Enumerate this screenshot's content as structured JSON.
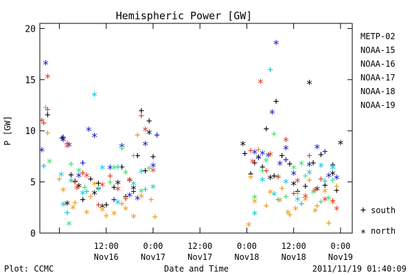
{
  "chart_data": {
    "type": "scatter",
    "title": "Hemispheric Power [GW]",
    "xlabel": "Date and Time",
    "ylabel": "P [GW]",
    "ylim": [
      0,
      20.5
    ],
    "xlim": [
      "2011-11-15 19:00",
      "2011-11-19 03:00"
    ],
    "y_ticks": [
      0,
      5,
      10,
      15,
      20
    ],
    "x_ticks": [
      {
        "time": "2011-11-16 00:00",
        "label": "",
        "sub": ""
      },
      {
        "time": "2011-11-16 12:00",
        "label": "12:00",
        "sub": "Nov16"
      },
      {
        "time": "2011-11-17 00:00",
        "label": "0:00",
        "sub": "Nov17"
      },
      {
        "time": "2011-11-17 12:00",
        "label": "12:00",
        "sub": "Nov17"
      },
      {
        "time": "2011-11-18 00:00",
        "label": "0:00",
        "sub": "Nov18"
      },
      {
        "time": "2011-11-18 12:00",
        "label": "12:00",
        "sub": "Nov18"
      },
      {
        "time": "2011-11-19 00:00",
        "label": "0:00",
        "sub": "Nov19"
      }
    ],
    "grid": false,
    "legend_position": "right",
    "markers": {
      "south": "+",
      "north": "*"
    },
    "marker_legend": [
      {
        "symbol": "+",
        "label": "south"
      },
      {
        "symbol": "*",
        "label": "north"
      }
    ],
    "series": [
      {
        "name": "METP-02",
        "color": "#000000",
        "south": [
          [
            "2011-11-15 21:00",
            11.6
          ],
          [
            "2011-11-16 00:40",
            9.3
          ],
          [
            "2011-11-16 03:00",
            5.7
          ],
          [
            "2011-11-16 04:00",
            5.1
          ],
          [
            "2011-11-16 06:00",
            3.3
          ],
          [
            "2011-11-16 08:00",
            5.3
          ],
          [
            "2011-11-16 10:00",
            4.9
          ],
          [
            "2011-11-16 12:00",
            2.8
          ],
          [
            "2011-11-16 14:00",
            4.5
          ],
          [
            "2011-11-16 16:00",
            6.5
          ],
          [
            "2011-11-16 17:00",
            3.6
          ],
          [
            "2011-11-16 18:00",
            5.2
          ],
          [
            "2011-11-16 20:00",
            7.6
          ],
          [
            "2011-11-16 21:00",
            12.0
          ],
          [
            "2011-11-16 22:00",
            6.1
          ],
          [
            "2011-11-16 23:00",
            11.0
          ],
          [
            "2011-11-17 00:00",
            7.5
          ],
          [
            "2011-11-17 23:30",
            7.8
          ],
          [
            "2011-11-18 01:00",
            5.8
          ],
          [
            "2011-11-18 02:00",
            6.9
          ],
          [
            "2011-11-18 04:00",
            6.5
          ],
          [
            "2011-11-18 05:00",
            10.2
          ],
          [
            "2011-11-18 07:00",
            5.6
          ],
          [
            "2011-11-18 07:30",
            12.9
          ],
          [
            "2011-11-18 09:00",
            7.6
          ],
          [
            "2011-11-18 11:00",
            6.8
          ],
          [
            "2011-11-18 13:00",
            4.1
          ],
          [
            "2011-11-18 15:00",
            4.6
          ],
          [
            "2011-11-18 17:00",
            6.9
          ],
          [
            "2011-11-18 19:00",
            7.7
          ],
          [
            "2011-11-18 20:00",
            4.7
          ],
          [
            "2011-11-18 22:00",
            6.7
          ],
          [
            "2011-11-18 23:00",
            4.2
          ]
        ],
        "north": [
          [
            "2011-11-16 02:00",
            2.9
          ],
          [
            "2011-11-16 05:00",
            4.6
          ],
          [
            "2011-11-16 09:00",
            3.9
          ],
          [
            "2011-11-16 11:00",
            2.6
          ],
          [
            "2011-11-16 15:00",
            4.9
          ],
          [
            "2011-11-16 19:00",
            4.4
          ],
          [
            "2011-11-16 23:00",
            9.8
          ],
          [
            "2011-11-17 23:00",
            8.7
          ],
          [
            "2011-11-18 03:00",
            7.4
          ],
          [
            "2011-11-18 06:00",
            5.4
          ],
          [
            "2011-11-18 12:00",
            4.8
          ],
          [
            "2011-11-18 16:00",
            14.7
          ],
          [
            "2011-11-18 18:00",
            4.3
          ],
          [
            "2011-11-18 22:00",
            5.8
          ],
          [
            "2011-11-19 00:00",
            8.8
          ]
        ]
      },
      {
        "name": "NOAA-15",
        "color": "#1010c8",
        "south": [
          [
            "2011-11-16 01:00",
            9.4
          ],
          [
            "2011-11-16 06:00",
            6.9
          ],
          [
            "2011-11-16 10:00",
            4.4
          ],
          [
            "2011-11-16 14:00",
            3.3
          ],
          [
            "2011-11-16 19:00",
            4.1
          ],
          [
            "2011-11-17 01:00",
            9.6
          ],
          [
            "2011-11-18 03:00",
            7.4
          ],
          [
            "2011-11-18 10:00",
            7.2
          ],
          [
            "2011-11-18 20:00",
            8.0
          ]
        ],
        "north": [
          [
            "2011-11-15 19:30",
            8.1
          ],
          [
            "2011-11-15 20:30",
            16.6
          ],
          [
            "2011-11-16 01:00",
            9.1
          ],
          [
            "2011-11-16 02:30",
            8.6
          ],
          [
            "2011-11-16 05:00",
            5.6
          ],
          [
            "2011-11-16 07:30",
            10.1
          ],
          [
            "2011-11-16 09:00",
            9.5
          ],
          [
            "2011-11-16 13:00",
            6.4
          ],
          [
            "2011-11-16 16:00",
            8.5
          ],
          [
            "2011-11-16 18:00",
            3.7
          ],
          [
            "2011-11-16 20:00",
            3.4
          ],
          [
            "2011-11-16 22:00",
            8.7
          ],
          [
            "2011-11-17 00:00",
            6.6
          ],
          [
            "2011-11-18 02:00",
            7.9
          ],
          [
            "2011-11-18 04:00",
            7.8
          ],
          [
            "2011-11-18 05:30",
            7.6
          ],
          [
            "2011-11-18 06:30",
            11.8
          ],
          [
            "2011-11-18 07:30",
            18.6
          ],
          [
            "2011-11-18 08:30",
            6.8
          ],
          [
            "2011-11-18 10:00",
            8.3
          ],
          [
            "2011-11-18 12:00",
            5.8
          ],
          [
            "2011-11-18 16:00",
            6.7
          ],
          [
            "2011-11-18 18:00",
            8.4
          ],
          [
            "2011-11-18 21:00",
            5.6
          ],
          [
            "2011-11-18 23:00",
            5.4
          ]
        ]
      },
      {
        "name": "NOAA-16",
        "color": "#00c8e0",
        "south": [
          [
            "2011-11-15 20:00",
            6.6
          ],
          [
            "2011-11-16 02:00",
            2.0
          ],
          [
            "2011-11-16 07:00",
            4.1
          ],
          [
            "2011-11-16 15:00",
            6.5
          ],
          [
            "2011-11-16 22:00",
            4.3
          ],
          [
            "2011-11-18 06:00",
            16.0
          ],
          [
            "2011-11-18 08:00",
            3.3
          ],
          [
            "2011-11-18 14:00",
            2.9
          ],
          [
            "2011-11-18 20:00",
            5.1
          ]
        ],
        "north": [
          [
            "2011-11-16 00:30",
            5.7
          ],
          [
            "2011-11-16 01:00",
            2.8
          ],
          [
            "2011-11-16 03:00",
            5.1
          ],
          [
            "2011-11-16 06:00",
            3.9
          ],
          [
            "2011-11-16 09:00",
            13.5
          ],
          [
            "2011-11-16 11:00",
            6.4
          ],
          [
            "2011-11-16 15:00",
            3.0
          ],
          [
            "2011-11-16 19:00",
            4.8
          ],
          [
            "2011-11-16 21:00",
            6.0
          ],
          [
            "2011-11-17 00:00",
            4.5
          ],
          [
            "2011-11-18 02:00",
            1.9
          ],
          [
            "2011-11-18 04:00",
            5.2
          ],
          [
            "2011-11-18 07:00",
            3.8
          ],
          [
            "2011-11-18 10:00",
            5.0
          ],
          [
            "2011-11-18 13:00",
            3.3
          ],
          [
            "2011-11-18 16:00",
            5.9
          ],
          [
            "2011-11-18 19:00",
            6.6
          ],
          [
            "2011-11-18 22:00",
            6.4
          ]
        ]
      },
      {
        "name": "NOAA-17",
        "color": "#33e066",
        "south": [
          [
            "2011-11-15 20:30",
            12.3
          ],
          [
            "2011-11-16 03:00",
            6.8
          ],
          [
            "2011-11-16 06:30",
            4.5
          ],
          [
            "2011-11-16 13:00",
            5.0
          ],
          [
            "2011-11-16 16:00",
            8.3
          ],
          [
            "2011-11-16 19:00",
            7.6
          ],
          [
            "2011-11-16 23:00",
            6.4
          ],
          [
            "2011-11-18 04:00",
            6.1
          ],
          [
            "2011-11-18 07:00",
            9.7
          ],
          [
            "2011-11-18 10:00",
            3.6
          ],
          [
            "2011-11-18 15:00",
            5.6
          ],
          [
            "2011-11-18 19:00",
            3.1
          ],
          [
            "2011-11-18 22:00",
            5.2
          ]
        ],
        "north": [
          [
            "2011-11-15 21:30",
            7.0
          ],
          [
            "2011-11-16 02:30",
            0.9
          ],
          [
            "2011-11-16 05:00",
            6.1
          ],
          [
            "2011-11-16 10:00",
            4.3
          ],
          [
            "2011-11-16 14:00",
            6.4
          ],
          [
            "2011-11-16 17:00",
            5.9
          ],
          [
            "2011-11-16 21:00",
            4.1
          ],
          [
            "2011-11-18 02:00",
            3.5
          ],
          [
            "2011-11-18 05:00",
            7.1
          ],
          [
            "2011-11-18 08:00",
            5.5
          ],
          [
            "2011-11-18 12:00",
            6.4
          ],
          [
            "2011-11-18 14:00",
            6.8
          ],
          [
            "2011-11-18 17:00",
            4.0
          ],
          [
            "2011-11-18 21:00",
            3.4
          ]
        ]
      },
      {
        "name": "NOAA-18",
        "color": "#f09410",
        "south": [
          [
            "2011-11-15 21:00",
            9.8
          ],
          [
            "2011-11-16 00:00",
            5.3
          ],
          [
            "2011-11-16 04:00",
            3.0
          ],
          [
            "2011-11-16 08:00",
            3.6
          ],
          [
            "2011-11-16 12:00",
            1.7
          ],
          [
            "2011-11-16 16:00",
            2.9
          ],
          [
            "2011-11-16 20:00",
            9.6
          ],
          [
            "2011-11-16 23:30",
            3.3
          ],
          [
            "2011-11-17 00:30",
            1.6
          ],
          [
            "2011-11-18 01:00",
            5.5
          ],
          [
            "2011-11-18 03:00",
            8.2
          ],
          [
            "2011-11-18 05:00",
            2.7
          ],
          [
            "2011-11-18 09:00",
            4.4
          ],
          [
            "2011-11-18 11:00",
            1.8
          ],
          [
            "2011-11-18 13:00",
            3.9
          ],
          [
            "2011-11-18 16:00",
            5.2
          ],
          [
            "2011-11-18 18:00",
            2.7
          ],
          [
            "2011-11-18 21:00",
            1.0
          ],
          [
            "2011-11-18 23:00",
            4.6
          ]
        ],
        "north": [
          [
            "2011-11-16 01:00",
            4.2
          ],
          [
            "2011-11-16 03:30",
            2.5
          ],
          [
            "2011-11-16 07:00",
            2.0
          ],
          [
            "2011-11-16 09:00",
            4.8
          ],
          [
            "2011-11-16 11:00",
            2.3
          ],
          [
            "2011-11-16 14:00",
            1.9
          ],
          [
            "2011-11-16 17:00",
            2.4
          ],
          [
            "2011-11-16 19:00",
            1.6
          ],
          [
            "2011-11-16 21:00",
            3.6
          ],
          [
            "2011-11-18 00:30",
            0.8
          ],
          [
            "2011-11-18 02:00",
            3.1
          ],
          [
            "2011-11-18 06:00",
            4.0
          ],
          [
            "2011-11-18 08:30",
            3.2
          ],
          [
            "2011-11-18 10:30",
            2.0
          ],
          [
            "2011-11-18 12:30",
            2.4
          ],
          [
            "2011-11-18 15:00",
            3.3
          ],
          [
            "2011-11-18 17:30",
            2.2
          ],
          [
            "2011-11-18 20:00",
            4.1
          ],
          [
            "2011-11-18 22:00",
            3.0
          ]
        ]
      },
      {
        "name": "NOAA-19",
        "color": "#e8321e",
        "south": [
          [
            "2011-11-15 20:00",
            10.8
          ],
          [
            "2011-11-15 21:00",
            12.1
          ],
          [
            "2011-11-16 02:00",
            8.8
          ],
          [
            "2011-11-16 04:00",
            5.0
          ],
          [
            "2011-11-16 06:00",
            5.9
          ],
          [
            "2011-11-16 10:00",
            2.8
          ],
          [
            "2011-11-16 13:00",
            5.6
          ],
          [
            "2011-11-16 17:00",
            3.4
          ],
          [
            "2011-11-16 21:00",
            11.5
          ],
          [
            "2011-11-18 01:00",
            8.1
          ],
          [
            "2011-11-18 05:00",
            6.1
          ],
          [
            "2011-11-18 08:00",
            5.5
          ],
          [
            "2011-11-18 12:00",
            3.9
          ],
          [
            "2011-11-18 16:00",
            7.6
          ],
          [
            "2011-11-18 19:00",
            5.3
          ],
          [
            "2011-11-18 22:00",
            3.2
          ]
        ],
        "north": [
          [
            "2011-11-15 19:30",
            11.0
          ],
          [
            "2011-11-15 21:00",
            15.3
          ],
          [
            "2011-11-16 02:00",
            8.5
          ],
          [
            "2011-11-16 04:30",
            4.4
          ],
          [
            "2011-11-16 07:00",
            5.6
          ],
          [
            "2011-11-16 11:00",
            4.7
          ],
          [
            "2011-11-16 15:00",
            4.3
          ],
          [
            "2011-11-16 18:00",
            5.2
          ],
          [
            "2011-11-16 22:00",
            10.1
          ],
          [
            "2011-11-17 00:00",
            6.1
          ],
          [
            "2011-11-18 01:30",
            7.0
          ],
          [
            "2011-11-18 03:30",
            14.8
          ],
          [
            "2011-11-18 06:00",
            7.7
          ],
          [
            "2011-11-18 10:00",
            9.1
          ],
          [
            "2011-11-18 13:00",
            5.1
          ],
          [
            "2011-11-18 15:00",
            3.6
          ],
          [
            "2011-11-18 17:30",
            4.2
          ],
          [
            "2011-11-18 20:00",
            3.3
          ],
          [
            "2011-11-18 23:00",
            2.4
          ]
        ]
      }
    ]
  },
  "footer": {
    "plot_source": "Plot: CCMC",
    "timestamp": "2011/11/19 01:40:09"
  }
}
